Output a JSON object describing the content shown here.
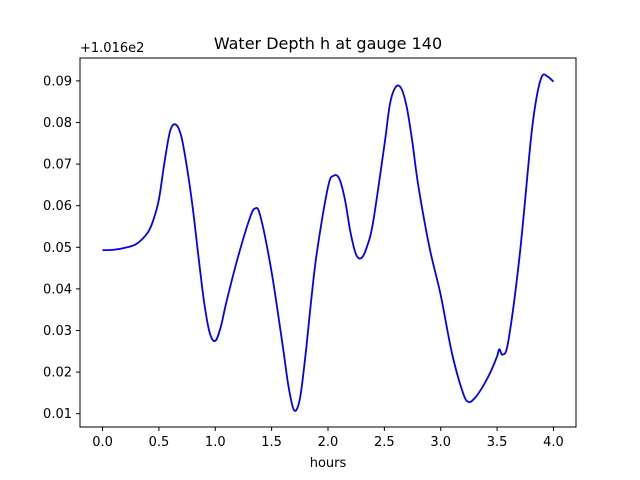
{
  "chart_data": {
    "type": "line",
    "title": "Water Depth h at gauge 140",
    "xlabel": "hours",
    "ylabel": "",
    "offset_label": "+1.016e2",
    "xlim": [
      -0.2,
      4.2
    ],
    "ylim": [
      0.0068,
      0.0955
    ],
    "xticks": [
      0.0,
      0.5,
      1.0,
      1.5,
      2.0,
      2.5,
      3.0,
      3.5,
      4.0
    ],
    "xtick_labels": [
      "0.0",
      "0.5",
      "1.0",
      "1.5",
      "2.0",
      "2.5",
      "3.0",
      "3.5",
      "4.0"
    ],
    "yticks": [
      0.01,
      0.02,
      0.03,
      0.04,
      0.05,
      0.06,
      0.07,
      0.08,
      0.09
    ],
    "ytick_labels": [
      "0.01",
      "0.02",
      "0.03",
      "0.04",
      "0.05",
      "0.06",
      "0.07",
      "0.08",
      "0.09"
    ],
    "grid": false,
    "series": [
      {
        "color": "#0000ff",
        "x": [
          0.0,
          0.1,
          0.2,
          0.3,
          0.4,
          0.45,
          0.5,
          0.55,
          0.6,
          0.65,
          0.7,
          0.75,
          0.8,
          0.85,
          0.9,
          0.95,
          1.0,
          1.05,
          1.1,
          1.2,
          1.3,
          1.35,
          1.4,
          1.5,
          1.6,
          1.65,
          1.7,
          1.75,
          1.8,
          1.85,
          1.9,
          2.0,
          2.05,
          2.1,
          2.15,
          2.2,
          2.25,
          2.3,
          2.35,
          2.4,
          2.5,
          2.55,
          2.6,
          2.65,
          2.7,
          2.75,
          2.8,
          2.9,
          3.0,
          3.1,
          3.2,
          3.25,
          3.3,
          3.35,
          3.4,
          3.45,
          3.5,
          3.52,
          3.55,
          3.6,
          3.7,
          3.8,
          3.85,
          3.9,
          3.95,
          4.0
        ],
        "y": [
          0.0493,
          0.0494,
          0.0499,
          0.0508,
          0.0535,
          0.0565,
          0.0615,
          0.0705,
          0.078,
          0.0795,
          0.0765,
          0.069,
          0.0595,
          0.048,
          0.037,
          0.0295,
          0.0275,
          0.031,
          0.037,
          0.0475,
          0.0565,
          0.0593,
          0.0575,
          0.044,
          0.026,
          0.0165,
          0.0108,
          0.0135,
          0.024,
          0.037,
          0.0485,
          0.0645,
          0.0672,
          0.0665,
          0.0615,
          0.0535,
          0.0482,
          0.0475,
          0.0505,
          0.056,
          0.0745,
          0.0845,
          0.0885,
          0.0882,
          0.0835,
          0.075,
          0.065,
          0.05,
          0.0385,
          0.0245,
          0.0148,
          0.0128,
          0.0137,
          0.0155,
          0.0178,
          0.0205,
          0.0238,
          0.0255,
          0.0242,
          0.0275,
          0.048,
          0.076,
          0.086,
          0.0912,
          0.091,
          0.0898
        ]
      }
    ]
  }
}
